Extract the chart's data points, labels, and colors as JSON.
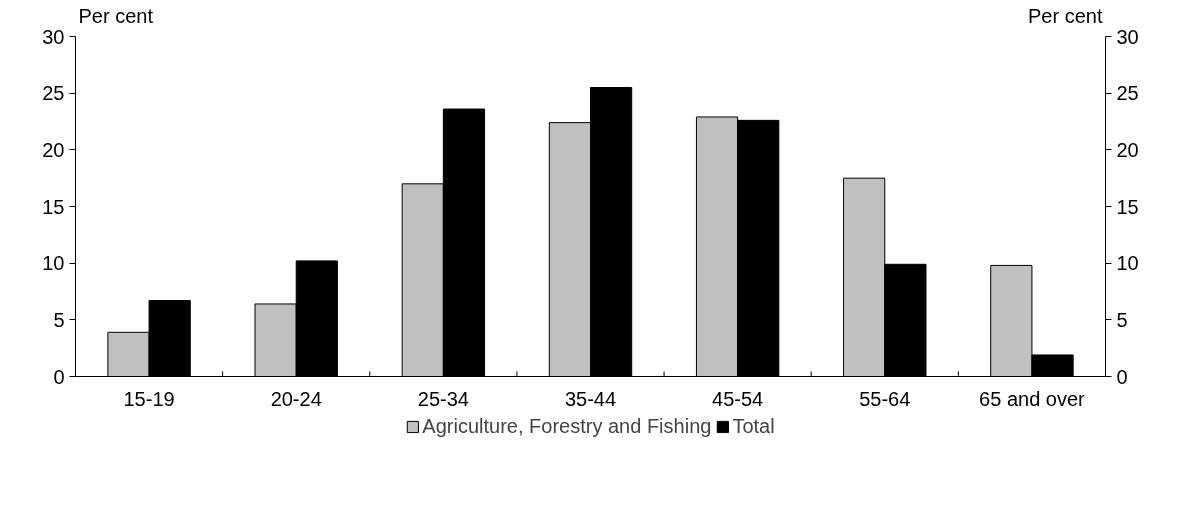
{
  "chart_data": {
    "type": "bar",
    "categories": [
      "15-19",
      "20-24",
      "25-34",
      "35-44",
      "45-54",
      "55-64",
      "65 and over"
    ],
    "series": [
      {
        "name": "Agriculture, Forestry and Fishing",
        "color": "#c0c0c0",
        "values": [
          3.9,
          6.4,
          17.0,
          22.4,
          22.9,
          17.5,
          9.8
        ]
      },
      {
        "name": "Total",
        "color": "#000000",
        "values": [
          6.7,
          10.2,
          23.6,
          25.5,
          22.6,
          9.9,
          1.9
        ]
      }
    ],
    "ylabel": "Per cent",
    "y2label": "Per cent",
    "ylim": [
      0,
      30
    ],
    "yticks": [
      0,
      5,
      10,
      15,
      20,
      25,
      30
    ],
    "y2lim": [
      0,
      30
    ],
    "y2ticks": [
      0,
      5,
      10,
      15,
      20,
      25,
      30
    ],
    "grid": false,
    "legend": "bottom"
  }
}
